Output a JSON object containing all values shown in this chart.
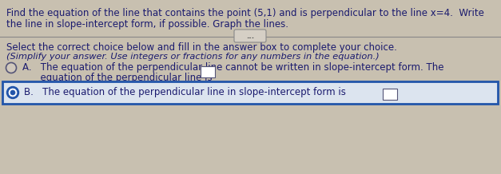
{
  "bg_color": "#c8c0b0",
  "text_color": "#1a1a6e",
  "title_line1": "Find the equation of the line that contains the point (5,1) and is perpendicular to the line x 4.  Write",
  "title_line1_plain": "Find the equation of the line that contains the point (5,1) and is perpendicular to the line x=4.  Write",
  "title_line2": "the line in slope-intercept form, if possible. Graph the lines.",
  "instruction_line1": "Select the correct choice below and fill in the answer box to complete your choice.",
  "instruction_line2": "(Simplify your answer. Use integers or fractions for any numbers in the equation.)",
  "option_a_line1": "A.   The equation of the perpendicular line cannot be written in slope-intercept form. The",
  "option_a_line2": "      equation of the perpendicular line is",
  "option_b_text": "B.   The equation of the perpendicular line in slope-intercept form is",
  "dots_text": "...",
  "box_border_color": "#2255aa",
  "radio_selected_color": "#2255aa",
  "radio_unselected_color": "#ffffff"
}
